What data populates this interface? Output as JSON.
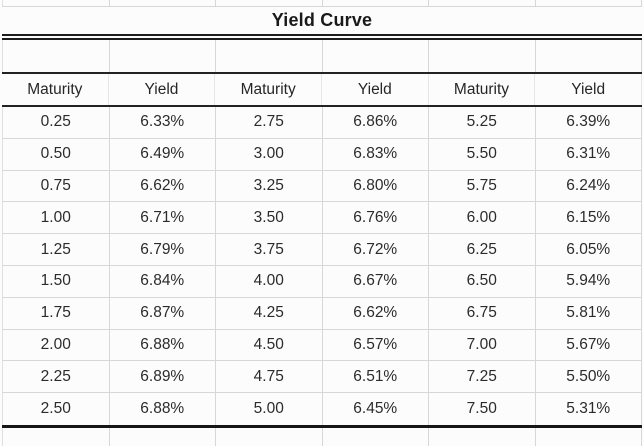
{
  "title": "Yield Curve",
  "table": {
    "headers": [
      "Maturity",
      "Yield",
      "Maturity",
      "Yield",
      "Maturity",
      "Yield"
    ],
    "rows": [
      [
        "0.25",
        "6.33%",
        "2.75",
        "6.86%",
        "5.25",
        "6.39%"
      ],
      [
        "0.50",
        "6.49%",
        "3.00",
        "6.83%",
        "5.50",
        "6.31%"
      ],
      [
        "0.75",
        "6.62%",
        "3.25",
        "6.80%",
        "5.75",
        "6.24%"
      ],
      [
        "1.00",
        "6.71%",
        "3.50",
        "6.76%",
        "6.00",
        "6.15%"
      ],
      [
        "1.25",
        "6.79%",
        "3.75",
        "6.72%",
        "6.25",
        "6.05%"
      ],
      [
        "1.50",
        "6.84%",
        "4.00",
        "6.67%",
        "6.50",
        "5.94%"
      ],
      [
        "1.75",
        "6.87%",
        "4.25",
        "6.62%",
        "6.75",
        "5.81%"
      ],
      [
        "2.00",
        "6.88%",
        "4.50",
        "6.57%",
        "7.00",
        "5.67%"
      ],
      [
        "2.25",
        "6.89%",
        "4.75",
        "6.51%",
        "7.25",
        "5.50%"
      ],
      [
        "2.50",
        "6.88%",
        "5.00",
        "6.45%",
        "7.50",
        "5.31%"
      ]
    ]
  },
  "chart_data": {
    "type": "table",
    "title": "Yield Curve",
    "columns": [
      "Maturity",
      "Yield"
    ],
    "series": [
      {
        "name": "Yield",
        "x_label": "Maturity",
        "x": [
          0.25,
          0.5,
          0.75,
          1.0,
          1.25,
          1.5,
          1.75,
          2.0,
          2.25,
          2.5,
          2.75,
          3.0,
          3.25,
          3.5,
          3.75,
          4.0,
          4.25,
          4.5,
          4.75,
          5.0,
          5.25,
          5.5,
          5.75,
          6.0,
          6.25,
          6.5,
          6.75,
          7.0,
          7.25,
          7.5
        ],
        "y_percent": [
          6.33,
          6.49,
          6.62,
          6.71,
          6.79,
          6.84,
          6.87,
          6.88,
          6.89,
          6.88,
          6.86,
          6.83,
          6.8,
          6.76,
          6.72,
          6.67,
          6.62,
          6.57,
          6.51,
          6.45,
          6.39,
          6.31,
          6.24,
          6.15,
          6.05,
          5.94,
          5.81,
          5.67,
          5.5,
          5.31
        ],
        "y_unit": "%"
      }
    ]
  },
  "colors": {
    "background": "#fcfcfc",
    "gridline": "#d7d7d7",
    "dark_border": "#1c1c1c",
    "text": "#2a2a2a"
  }
}
